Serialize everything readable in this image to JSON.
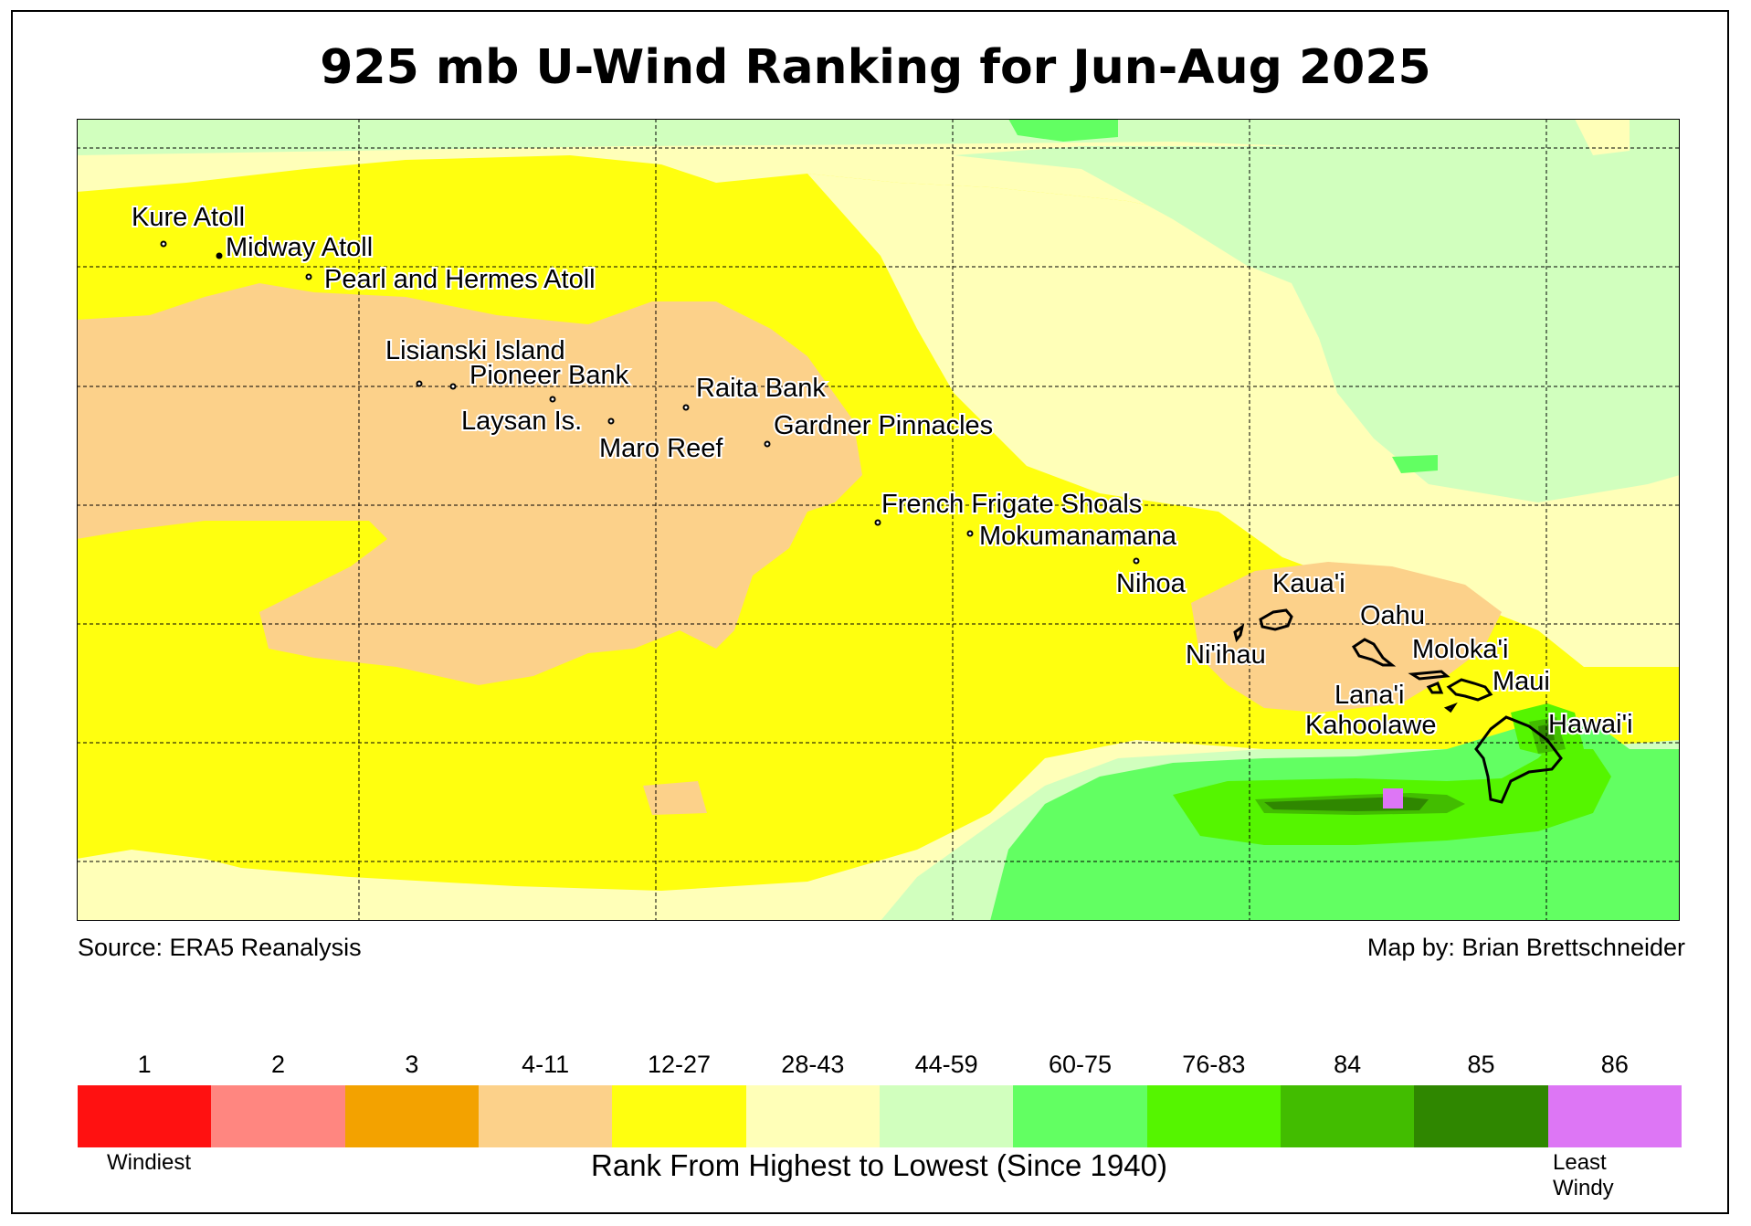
{
  "title": "925 mb U-Wind Ranking for Jun-Aug 2025",
  "source": "Source: ERA5 Reanalysis",
  "credit": "Map by: Brian Brettschneider",
  "legend": {
    "title": "Rank From Highest to Lowest (Since 1940)",
    "low_label": "Windiest",
    "high_label": "Least Windy",
    "bins": [
      {
        "label": "1",
        "color": "#ff1111"
      },
      {
        "label": "2",
        "color": "#ff8680"
      },
      {
        "label": "3",
        "color": "#f3a200"
      },
      {
        "label": "4-11",
        "color": "#fcd18a"
      },
      {
        "label": "12-27",
        "color": "#ffff0f"
      },
      {
        "label": "28-43",
        "color": "#ffffb8"
      },
      {
        "label": "44-59",
        "color": "#d1ffbe"
      },
      {
        "label": "60-75",
        "color": "#62ff62"
      },
      {
        "label": "76-83",
        "color": "#55f500"
      },
      {
        "label": "84",
        "color": "#42bd00"
      },
      {
        "label": "85",
        "color": "#2f8700"
      },
      {
        "label": "86",
        "color": "#dd76f5"
      }
    ]
  },
  "places": [
    "Kure Atoll",
    "Midway Atoll",
    "Pearl and Hermes Atoll",
    "Lisianski Island",
    "Pioneer Bank",
    "Raita Bank",
    "Laysan Is.",
    "Gardner Pinnacles",
    "Maro Reef",
    "French Frigate Shoals",
    "Mokumanamana",
    "Nihoa",
    "Kaua'i",
    "Oahu",
    "Ni'ihau",
    "Moloka'i",
    "Maui",
    "Lana'i",
    "Hawai'i",
    "Kahoolawe"
  ]
}
